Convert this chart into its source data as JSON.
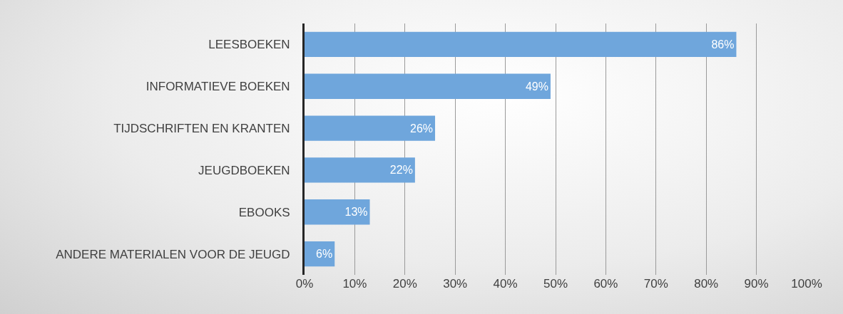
{
  "chart_data": {
    "type": "bar",
    "orientation": "horizontal",
    "categories": [
      "LEESBOEKEN",
      "INFORMATIEVE BOEKEN",
      "TIJDSCHRIFTEN EN KRANTEN",
      "JEUGDBOEKEN",
      "EBOOKS",
      "ANDERE MATERIALEN VOOR DE JEUGD"
    ],
    "values": [
      86,
      49,
      26,
      22,
      13,
      6
    ],
    "value_labels": [
      "86%",
      "49%",
      "26%",
      "22%",
      "13%",
      "6%"
    ],
    "color": "#6fa6dc",
    "xlim": [
      0,
      100
    ],
    "xticks": [
      {
        "value": 0,
        "label": "0%"
      },
      {
        "value": 10,
        "label": "10%"
      },
      {
        "value": 20,
        "label": "20%"
      },
      {
        "value": 30,
        "label": "30%"
      },
      {
        "value": 40,
        "label": "40%"
      },
      {
        "value": 50,
        "label": "50%"
      },
      {
        "value": 60,
        "label": "60%"
      },
      {
        "value": 70,
        "label": "70%"
      },
      {
        "value": 80,
        "label": "80%"
      },
      {
        "value": 90,
        "label": "90%"
      },
      {
        "value": 100,
        "label": "100%"
      }
    ],
    "grid": "x"
  }
}
